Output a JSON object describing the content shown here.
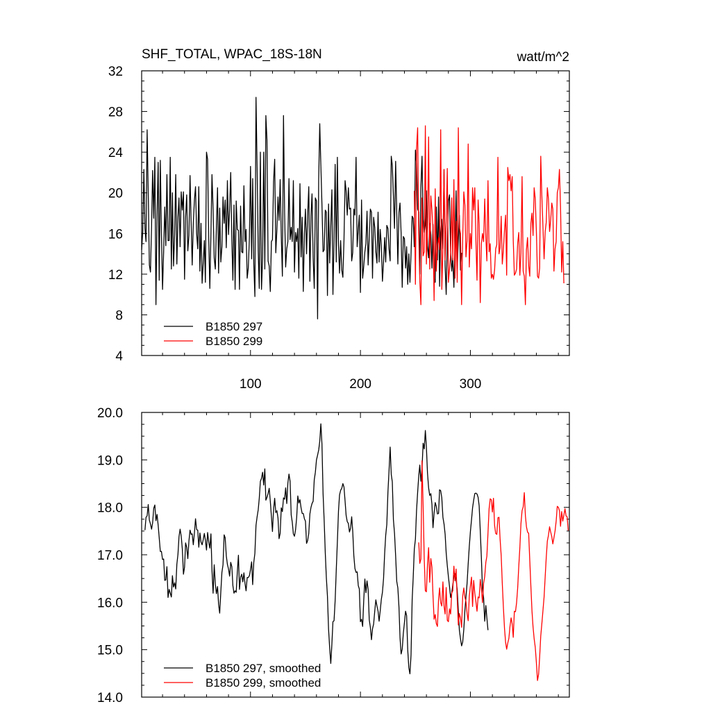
{
  "chart_data": [
    {
      "type": "line",
      "title": "SHF_TOTAL, WPAC_18S-18N",
      "units": "watt/m^2",
      "xlim": [
        1,
        390
      ],
      "ylim": [
        4,
        32
      ],
      "x_ticks": [
        100,
        200,
        300
      ],
      "y_ticks": [
        4,
        8,
        12,
        16,
        20,
        24,
        28,
        32
      ],
      "y_tick_labels": [
        "4",
        "8",
        "12",
        "16",
        "20",
        "24",
        "28",
        "32"
      ],
      "legend_position": "bottom-left",
      "grid": false,
      "colors": {
        "series_1": "#000000",
        "series_2": "#ff0000"
      },
      "series": [
        {
          "name": "B1850 297",
          "color": "#000000",
          "x_start": 1,
          "values": [
            14.4,
            16.2,
            22.3,
            16.5,
            15.2,
            26.2,
            20.0,
            12.9,
            12.2,
            16.8,
            22.2,
            17.5,
            23.5,
            9.0,
            17.8,
            23.0,
            11.4,
            23.2,
            16.0,
            10.5,
            14.3,
            18.6,
            14.8,
            21.8,
            15.3,
            15.3,
            23.5,
            12.5,
            20.0,
            12.8,
            15.9,
            21.8,
            13.0,
            17.6,
            19.5,
            14.7,
            20.1,
            18.3,
            20.1,
            11.5,
            17.6,
            19.8,
            14.3,
            15.8,
            21.7,
            17.0,
            12.9,
            17.0,
            19.3,
            20.6,
            16.0,
            14.5,
            20.6,
            12.3,
            17.0,
            11.1,
            13.1,
            15.3,
            11.2,
            24.0,
            23.3,
            15.6,
            10.6,
            16.0,
            21.8,
            18.4,
            13.6,
            12.5,
            16.7,
            20.5,
            12.1,
            18.5,
            13.2,
            14.7,
            19.6,
            17.0,
            19.3,
            14.6,
            21.2,
            15.9,
            18.4,
            22.0,
            15.4,
            11.4,
            18.8,
            10.5,
            19.2,
            16.4,
            16.3,
            10.5,
            18.7,
            14.2,
            14.1,
            20.7,
            15.2,
            16.4,
            11.6,
            12.6,
            15.6,
            22.6,
            13.5,
            21.4,
            13.0,
            9.8,
            29.4,
            22.5,
            14.3,
            10.6,
            24.0,
            10.5,
            13.6,
            24.0,
            12.5,
            27.6,
            25.2,
            13.3,
            12.8,
            10.3,
            15.2,
            15.4,
            21.1,
            23.3,
            14.1,
            16.4,
            19.6,
            17.3,
            21.3,
            15.7,
            11.8,
            27.6,
            18.0,
            12.7,
            14.5,
            15.2,
            21.4,
            15.4,
            16.6,
            15.2,
            21.2,
            12.2,
            16.1,
            15.2,
            16.5,
            11.6,
            20.9,
            13.7,
            17.6,
            10.3,
            16.0,
            18.4,
            14.0,
            17.8,
            20.6,
            11.3,
            17.7,
            19.9,
            13.6,
            10.6,
            19.5,
            19.2,
            7.6,
            21.3,
            26.8,
            22.7,
            18.8,
            14.2,
            14.4,
            18.3,
            18.1,
            9.9,
            18.9,
            13.1,
            16.8,
            20.3,
            10.0,
            15.3,
            22.8,
            13.2,
            23.5,
            14.9,
            12.1,
            15.3,
            12.4,
            11.7,
            15.3,
            21.2,
            20.2,
            17.8,
            20.5,
            18.4,
            18.5,
            13.3,
            14.1,
            18.4,
            17.8,
            23.5,
            14.7,
            16.4,
            17.8,
            10.2,
            19.3,
            11.6,
            12.8,
            14.2,
            15.0,
            18.2,
            12.9,
            15.6,
            18.4,
            18.1,
            11.6,
            17.6,
            16.6,
            14.2,
            13.1,
            18.1,
            13.2,
            16.4,
            14.8,
            11.3,
            13.2,
            15.6,
            13.2,
            16.8,
            16.5,
            14.5,
            13.3,
            23.6,
            22.7,
            19.7,
            16.5,
            23.1,
            18.1,
            13.0,
            18.1,
            19.0,
            16.0,
            10.7,
            15.7,
            15.5,
            12.6,
            14.7,
            11.0,
            14.0,
            11.2,
            14.0,
            17.7,
            17.5,
            14.7,
            24.2,
            22.9,
            18.4,
            18.1,
            12.0,
            20.5,
            23.6,
            17.4,
            16.1,
            16.9,
            20.2,
            14.8,
            13.6,
            17.0,
            15.9,
            12.6,
            16.9,
            11.6,
            11.2,
            18.6,
            13.4,
            19.6,
            10.8,
            16.1,
            17.4,
            14.5,
            22.3,
            12.8,
            10.0,
            15.2,
            19.2,
            19.8,
            14.3,
            12.3,
            13.6,
            10.7,
            15.1,
            20.2,
            12.5,
            15.4,
            17.8,
            12.4,
            14.1
          ]
        },
        {
          "name": "B1850 299",
          "color": "#ff0000",
          "x_start": 249,
          "values": [
            20.2,
            11.0,
            24.3,
            26.4,
            16.0,
            11.3,
            9.0,
            19.5,
            13.8,
            14.2,
            26.6,
            13.0,
            16.5,
            25.5,
            12.5,
            19.7,
            18.3,
            16.5,
            9.4,
            20.4,
            12.3,
            14.8,
            15.6,
            14.4,
            26.2,
            10.5,
            14.3,
            22.3,
            13.4,
            17.2,
            22.4,
            11.2,
            12.5,
            13.9,
            19.5,
            13.4,
            21.3,
            11.6,
            17.2,
            11.2,
            26.4,
            16.6,
            16.0,
            9.0,
            15.5,
            20.1,
            18.8,
            13.7,
            15.3,
            24.8,
            12.7,
            16.0,
            14.5,
            20.5,
            18.3,
            20.5,
            15.3,
            11.4,
            19.3,
            16.9,
            9.2,
            15.0,
            16.0,
            15.2,
            19.4,
            15.6,
            13.3,
            21.2,
            14.2,
            15.0,
            11.6,
            12.0,
            11.5,
            12.4,
            14.5,
            14.9,
            23.5,
            14.0,
            14.6,
            17.7,
            13.0,
            14.4,
            16.3,
            17.8,
            11.9,
            22.5,
            21.2,
            21.8,
            20.2,
            21.6,
            15.3,
            11.9,
            12.1,
            12.5,
            15.1,
            16.1,
            11.9,
            14.1,
            21.6,
            12.3,
            11.8,
            9.0,
            14.4,
            15.6,
            12.8,
            11.8,
            17.0,
            18.0,
            15.8,
            20.5,
            19.4,
            16.2,
            11.8,
            11.6,
            12.6,
            23.6,
            19.7,
            16.6,
            13.5,
            16.2,
            17.1,
            20.5,
            19.4,
            16.2,
            17.3,
            19.0,
            18.4,
            12.3,
            14.5,
            15.2,
            20.0,
            20.5,
            22.3,
            18.6,
            12.2,
            15.2,
            11.1
          ]
        }
      ]
    },
    {
      "type": "line",
      "xlim": [
        1,
        390
      ],
      "ylim": [
        14.0,
        20.0
      ],
      "y_ticks": [
        14.0,
        15.0,
        16.0,
        17.0,
        18.0,
        19.0,
        20.0
      ],
      "y_tick_labels": [
        "14.0",
        "15.0",
        "16.0",
        "17.0",
        "18.0",
        "19.0",
        "20.0"
      ],
      "legend_position": "bottom-left",
      "grid": false,
      "series": [
        {
          "name": "B1850 297, smoothed",
          "color": "#000000",
          "x_start": 4,
          "values": [
            17.52,
            17.79,
            17.82,
            18.06,
            17.73,
            17.65,
            17.54,
            17.67,
            17.98,
            18.05,
            17.72,
            17.85,
            17.62,
            17.36,
            17.07,
            17.07,
            16.9,
            16.91,
            16.46,
            16.47,
            16.75,
            16.1,
            16.27,
            16.19,
            16.11,
            16.56,
            16.32,
            16.41,
            16.28,
            16.8,
            17.01,
            17.38,
            17.54,
            17.39,
            17.12,
            16.59,
            16.74,
            17.25,
            17.16,
            16.92,
            17.29,
            17.52,
            17.43,
            17.44,
            17.21,
            17.46,
            17.76,
            17.53,
            17.52,
            17.16,
            17.46,
            17.27,
            17.21,
            17.32,
            17.45,
            17.31,
            17.1,
            17.47,
            17.27,
            17.14,
            17.44,
            16.67,
            16.19,
            16.79,
            16.38,
            16.18,
            16.33,
            15.96,
            15.77,
            16.21,
            16.63,
            16.79,
            17.42,
            17.36,
            16.98,
            16.8,
            16.7,
            16.55,
            16.84,
            16.75,
            16.35,
            16.19,
            16.24,
            16.21,
            16.64,
            16.99,
            16.27,
            16.53,
            16.59,
            16.43,
            16.62,
            16.39,
            16.24,
            16.52,
            16.52,
            16.56,
            16.69,
            16.85,
            16.37,
            16.84,
            17.03,
            17.62,
            17.8,
            17.95,
            18.19,
            18.55,
            18.61,
            18.74,
            18.47,
            18.81,
            18.15,
            18.21,
            18.29,
            18.4,
            18.13,
            17.81,
            17.49,
            17.95,
            18.19,
            17.89,
            17.93,
            17.77,
            17.34,
            17.45,
            17.99,
            17.91,
            18.2,
            18.17,
            18.41,
            18.08,
            18.51,
            18.7,
            18.55,
            17.84,
            17.69,
            17.44,
            17.39,
            17.53,
            17.79,
            18.24,
            18.09,
            18.16,
            17.99,
            17.87,
            17.87,
            17.76,
            17.71,
            17.24,
            17.3,
            17.45,
            17.86,
            18.0,
            18.08,
            18.13,
            18.58,
            18.74,
            19.0,
            19.1,
            19.21,
            19.39,
            19.76,
            19.33,
            18.29,
            17.71,
            17.03,
            16.52,
            16.13,
            15.43,
            15.04,
            14.71,
            15.12,
            15.59,
            15.61,
            16.04,
            16.68,
            17.28,
            17.92,
            18.26,
            18.36,
            18.4,
            18.5,
            18.43,
            18.13,
            17.83,
            17.7,
            17.66,
            17.48,
            17.56,
            17.8,
            17.5,
            16.98,
            16.71,
            16.63,
            16.64,
            16.35,
            16.28,
            15.59,
            15.64,
            15.49,
            16.05,
            16.49,
            16.2,
            16.45,
            16.27,
            15.63,
            15.47,
            15.21,
            15.44,
            15.54,
            15.81,
            16.05,
            15.92,
            15.81,
            15.6,
            15.82,
            16.06,
            16.21,
            16.5,
            17.03,
            17.41,
            17.64,
            18.32,
            18.77,
            19.27,
            18.69,
            18.54,
            17.74,
            17.45,
            16.98,
            16.44,
            16.3,
            15.9,
            15.26,
            14.91,
            15.01,
            15.35,
            15.57,
            15.81,
            15.72,
            15.0,
            14.62,
            14.49,
            14.89,
            16.05,
            16.52,
            17.12,
            17.33,
            17.93,
            18.32,
            18.66,
            18.89,
            18.55,
            18.82,
            19.35,
            19.23,
            19.62,
            19.27,
            18.72,
            18.41,
            18.25,
            18.29,
            18.06,
            17.57,
            17.88,
            18.1,
            18.02,
            17.86,
            17.87,
            18.37,
            18.35,
            18.2,
            17.79,
            17.65,
            17.43,
            17.04,
            16.77,
            16.54,
            16.33,
            16.1,
            16.2,
            16.36,
            16.55,
            16.6,
            16.48,
            16.26,
            15.82,
            15.41,
            15.23,
            15.08,
            15.16,
            15.43,
            15.84,
            16.11,
            16.4,
            16.81,
            17.18,
            17.49,
            17.74,
            17.99,
            18.15,
            18.29,
            18.3,
            18.28,
            18.21,
            18.03,
            17.5,
            16.93,
            16.28,
            16.09,
            15.6,
            15.93,
            15.67,
            15.41
          ]
        },
        {
          "name": "B1850 299, smoothed",
          "color": "#ff0000",
          "x_start": 253,
          "values": [
            17.26,
            16.82,
            16.91,
            18.98,
            18.04,
            16.91,
            16.24,
            16.22,
            16.8,
            17.15,
            16.42,
            16.92,
            16.74,
            16.15,
            15.64,
            15.74,
            15.55,
            15.49,
            16.05,
            16.3,
            15.99,
            15.92,
            16.43,
            15.92,
            15.75,
            16.31,
            15.62,
            15.59,
            15.86,
            15.75,
            16.2,
            16.24,
            16.76,
            16.45,
            16.7,
            16.06,
            15.52,
            15.76,
            15.67,
            15.47,
            16.13,
            16.3,
            16.1,
            16.01,
            15.76,
            15.61,
            16.13,
            16.34,
            16.53,
            15.91,
            16.46,
            16.19,
            16.01,
            15.81,
            16.11,
            16.09,
            16.48,
            16.29,
            15.99,
            16.4,
            16.54,
            16.84,
            16.97,
            17.46,
            17.97,
            18.18,
            18.16,
            17.9,
            18.19,
            17.62,
            17.45,
            17.43,
            17.78,
            17.79,
            17.34,
            16.99,
            16.4,
            15.89,
            15.45,
            15.15,
            15.01,
            15.14,
            15.24,
            15.49,
            15.67,
            15.54,
            15.26,
            15.81,
            15.8,
            15.99,
            16.31,
            16.77,
            17.15,
            17.66,
            17.93,
            18.01,
            18.31,
            17.82,
            17.59,
            17.48,
            17.45,
            16.88,
            16.33,
            15.81,
            15.48,
            15.23,
            15.05,
            14.73,
            14.35,
            14.48,
            14.84,
            15.29,
            15.55,
            15.83,
            16.11,
            16.54,
            16.94,
            17.29,
            17.41,
            17.59,
            17.48,
            17.38,
            17.23,
            17.36,
            17.5,
            17.71,
            18.02,
            18.0,
            17.93,
            17.6,
            17.91,
            17.71,
            17.84,
            17.97,
            17.82,
            17.8,
            17.51
          ]
        }
      ]
    }
  ]
}
